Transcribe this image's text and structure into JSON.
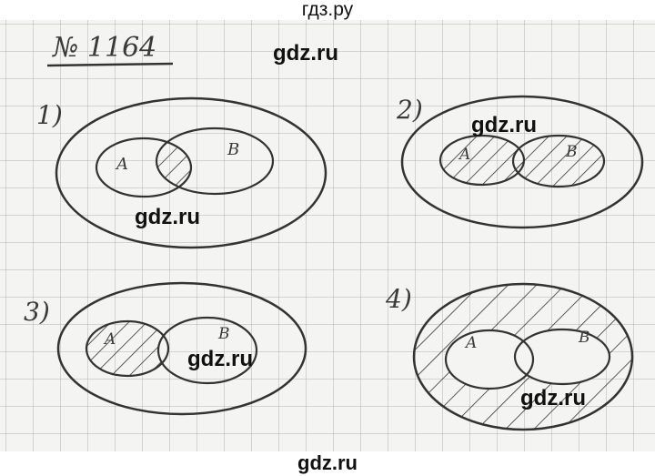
{
  "header": {
    "site": "гдз.ру"
  },
  "footer": {
    "site": "gdz.ru"
  },
  "problem": {
    "number": "№ 1164"
  },
  "watermarks": [
    "gdz.ru",
    "gdz.ru",
    "gdz.ru",
    "gdz.ru",
    "gdz.ru"
  ],
  "diagrams": [
    {
      "label": "1)",
      "set_a": "A",
      "set_b": "B"
    },
    {
      "label": "2)",
      "set_a": "A",
      "set_b": "B"
    },
    {
      "label": "3)",
      "set_a": "A",
      "set_b": "B"
    },
    {
      "label": "4)",
      "set_a": "A",
      "set_b": "B"
    }
  ]
}
